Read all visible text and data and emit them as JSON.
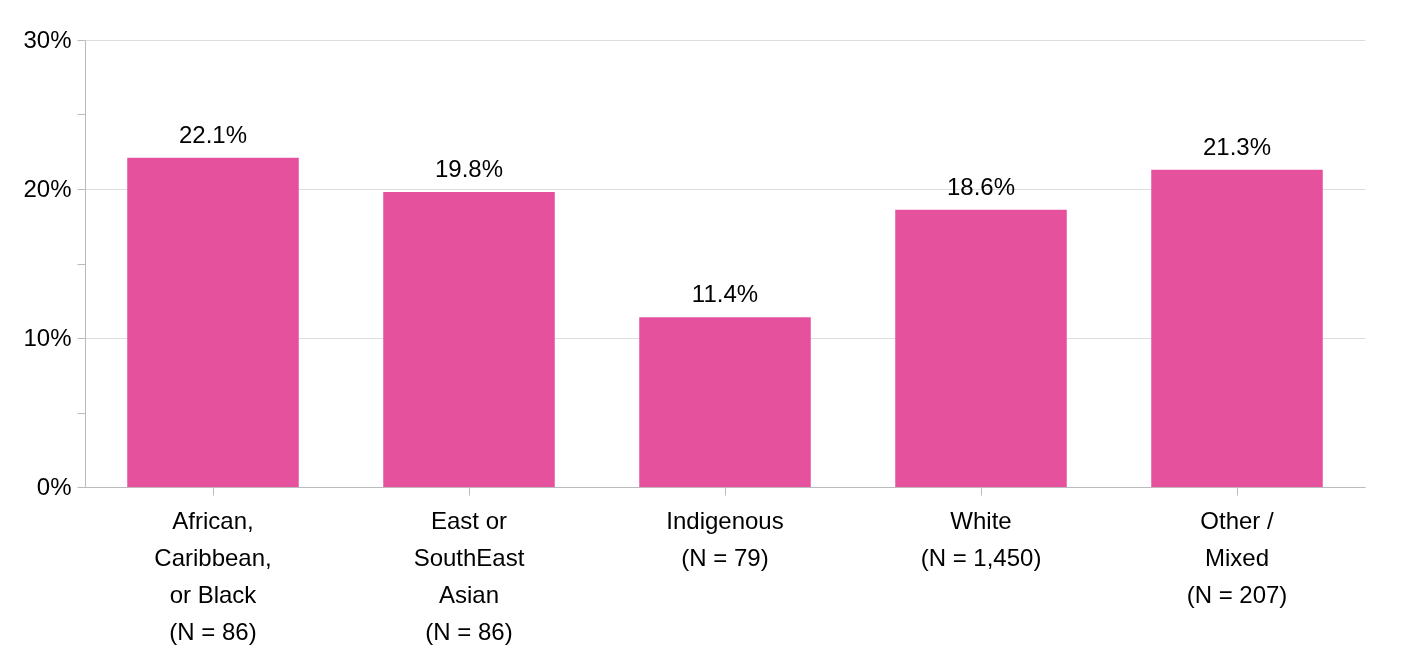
{
  "chart_data": {
    "type": "bar",
    "categories": [
      "African,\nCaribbean,\nor Black\n(N = 86)",
      "East or\nSouthEast\nAsian\n(N = 86)",
      "Indigenous\n(N = 79)",
      "White\n(N = 1,450)",
      "Other /\nMixed\n(N = 207)"
    ],
    "values": [
      22.1,
      19.8,
      11.4,
      18.6,
      21.3
    ],
    "value_labels": [
      "22.1%",
      "19.8%",
      "11.4%",
      "18.6%",
      "21.3%"
    ],
    "color": "#e6519e",
    "ylim": [
      0,
      30
    ],
    "yticks": [
      {
        "value": 0,
        "label": "0%"
      },
      {
        "value": 5,
        "label": null
      },
      {
        "value": 10,
        "label": "10%"
      },
      {
        "value": 15,
        "label": null
      },
      {
        "value": 20,
        "label": "20%"
      },
      {
        "value": 25,
        "label": null
      },
      {
        "value": 30,
        "label": "30%"
      }
    ],
    "grid": "y"
  }
}
